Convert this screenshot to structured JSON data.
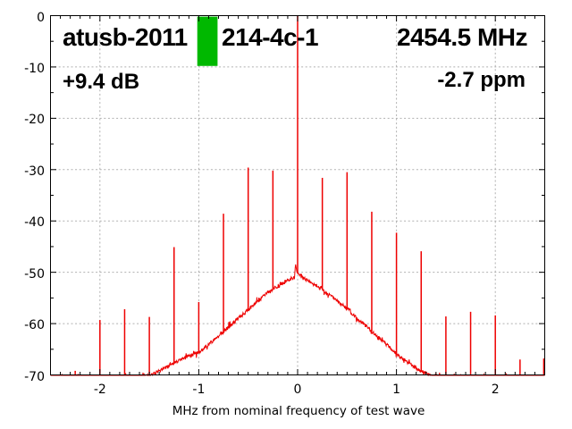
{
  "header": {
    "title_left": "atusb-2011",
    "title_mid": "214-4c-1",
    "title_right": "2454.5 MHz",
    "gain_label": "+9.4 dB",
    "ppm_label": "-2.7 ppm"
  },
  "chart_data": {
    "type": "line",
    "title": "atusb-2011 214-4c-1 2454.5 MHz",
    "xlabel": "MHz from nominal frequency of test wave",
    "ylabel": "",
    "xlim": [
      -2.5,
      2.5
    ],
    "ylim": [
      -70,
      0
    ],
    "x_ticks": [
      -2,
      -1,
      0,
      1,
      2
    ],
    "y_ticks": [
      0,
      -10,
      -20,
      -30,
      -40,
      -50,
      -60,
      -70
    ],
    "x_minor_step": 0.1,
    "y_minor_step": 5,
    "grid": true,
    "legend": "none",
    "trace_color": "#ee0000",
    "grid_color": "#b0b0b0",
    "axis_color": "#000000",
    "marker_color": "#00b800",
    "marker_box": {
      "x1": -1.015,
      "x2": -0.81,
      "db_top": -0.2,
      "db_bottom": -9.8
    },
    "center_peak": {
      "x": 0,
      "db_top": 0
    },
    "spikes": [
      [
        -2.25,
        -69.2
      ],
      [
        -2.0,
        -59.3
      ],
      [
        -1.75,
        -57.2
      ],
      [
        -1.5,
        -58.7
      ],
      [
        -1.25,
        -45.1
      ],
      [
        -1.0,
        -55.8
      ],
      [
        -0.75,
        -38.6
      ],
      [
        -0.5,
        -29.6
      ],
      [
        -0.25,
        -30.2
      ],
      [
        0.25,
        -31.6
      ],
      [
        0.5,
        -30.5
      ],
      [
        0.75,
        -38.2
      ],
      [
        1.0,
        -42.3
      ],
      [
        1.25,
        -45.9
      ],
      [
        1.5,
        -58.6
      ],
      [
        1.75,
        -57.7
      ],
      [
        2.0,
        -58.4
      ],
      [
        2.11,
        -69.7
      ],
      [
        2.25,
        -67.0
      ],
      [
        2.49,
        -66.8
      ]
    ],
    "noise_envelope": [
      [
        -2.5,
        -70.8
      ],
      [
        -1.62,
        -70.8
      ],
      [
        -1.55,
        -70.35
      ],
      [
        -1.5,
        -70.1
      ],
      [
        -1.45,
        -69.7
      ],
      [
        -1.4,
        -69.2
      ],
      [
        -1.3,
        -68.3
      ],
      [
        -1.2,
        -67.2
      ],
      [
        -1.1,
        -66.4
      ],
      [
        -1.0,
        -65.6
      ],
      [
        -0.9,
        -64.1
      ],
      [
        -0.84,
        -63.1
      ],
      [
        -0.75,
        -61.6
      ],
      [
        -0.66,
        -60.0
      ],
      [
        -0.56,
        -58.2
      ],
      [
        -0.48,
        -57.0
      ],
      [
        -0.4,
        -55.6
      ],
      [
        -0.34,
        -54.6
      ],
      [
        -0.3,
        -53.9
      ],
      [
        -0.24,
        -53.2
      ],
      [
        -0.2,
        -52.7
      ],
      [
        -0.15,
        -52.1
      ],
      [
        -0.1,
        -51.6
      ],
      [
        -0.06,
        -51.2
      ],
      [
        -0.03,
        -50.9
      ],
      [
        -0.018,
        -47.6
      ],
      [
        -0.008,
        -50.2
      ],
      [
        0.0,
        -50.0
      ],
      [
        0.008,
        -50.4
      ],
      [
        0.02,
        -50.7
      ],
      [
        0.035,
        -49.9
      ],
      [
        0.05,
        -51.1
      ],
      [
        0.1,
        -51.6
      ],
      [
        0.15,
        -52.2
      ],
      [
        0.2,
        -52.7
      ],
      [
        0.25,
        -53.3
      ],
      [
        0.3,
        -54.1
      ],
      [
        0.36,
        -54.9
      ],
      [
        0.42,
        -55.9
      ],
      [
        0.5,
        -57.1
      ],
      [
        0.6,
        -58.9
      ],
      [
        0.7,
        -60.6
      ],
      [
        0.8,
        -62.4
      ],
      [
        0.9,
        -64.1
      ],
      [
        1.0,
        -65.9
      ],
      [
        1.1,
        -67.4
      ],
      [
        1.2,
        -68.7
      ],
      [
        1.3,
        -69.7
      ],
      [
        1.4,
        -70.3
      ],
      [
        1.5,
        -70.6
      ],
      [
        2.5,
        -70.8
      ]
    ]
  }
}
